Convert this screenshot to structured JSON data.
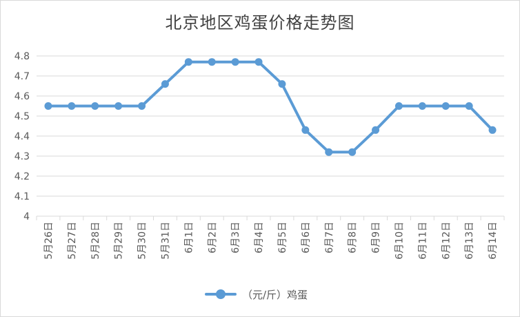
{
  "chart_data": {
    "type": "line",
    "title": "北京地区鸡蛋价格走势图",
    "categories": [
      "5月26日",
      "5月27日",
      "5月28日",
      "5月29日",
      "5月30日",
      "5月31日",
      "6月1日",
      "6月2日",
      "6月3日",
      "6月4日",
      "6月5日",
      "6月6日",
      "6月7日",
      "6月8日",
      "6月9日",
      "6月10日",
      "6月11日",
      "6月12日",
      "6月13日",
      "6月14日"
    ],
    "series": [
      {
        "name": "（元/斤）鸡蛋",
        "color": "#5b9bd5",
        "values": [
          4.55,
          4.55,
          4.55,
          4.55,
          4.55,
          4.66,
          4.77,
          4.77,
          4.77,
          4.77,
          4.66,
          4.43,
          4.32,
          4.32,
          4.43,
          4.55,
          4.55,
          4.55,
          4.55,
          4.43
        ]
      }
    ],
    "y_ticks": [
      "4",
      "4.1",
      "4.2",
      "4.3",
      "4.4",
      "4.5",
      "4.6",
      "4.7",
      "4.8"
    ],
    "ylim": [
      4,
      4.8
    ],
    "grid": true,
    "legend_position": "bottom"
  }
}
